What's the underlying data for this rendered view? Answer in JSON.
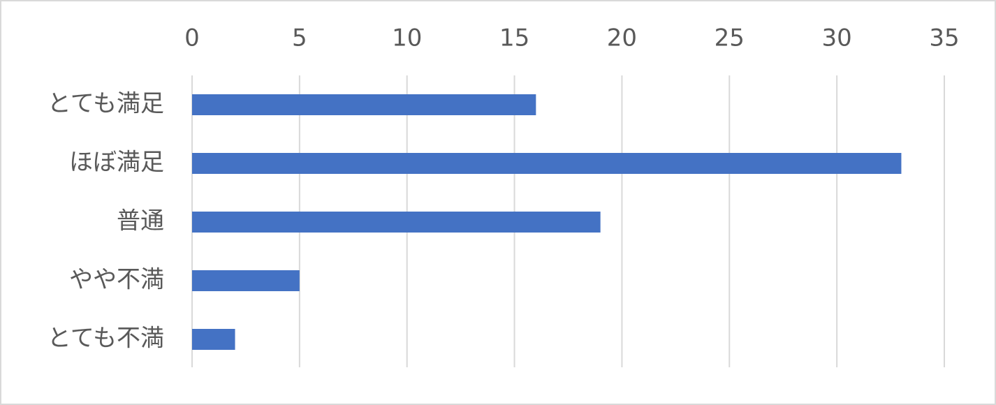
{
  "chart_data": {
    "type": "bar",
    "orientation": "horizontal",
    "categories": [
      "とても満足",
      "ほぼ満足",
      "普通",
      "やや不満",
      "とても不満"
    ],
    "values": [
      16,
      33,
      19,
      5,
      2
    ],
    "color": "#4472c4",
    "xlim": [
      0,
      35
    ],
    "xticks": [
      0,
      5,
      10,
      15,
      20,
      25,
      30,
      35
    ],
    "grid": true
  }
}
